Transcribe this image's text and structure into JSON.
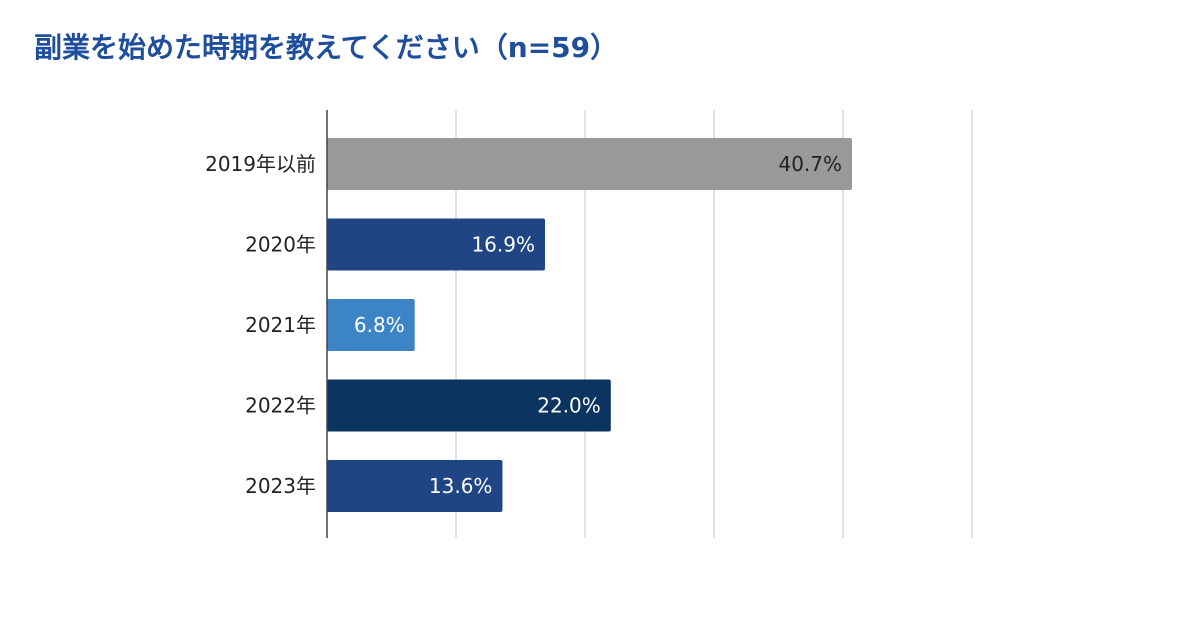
{
  "chart_data": {
    "type": "bar",
    "orientation": "horizontal",
    "title": "副業を始めた時期を教えてください（n=59）",
    "categories": [
      "2019年以前",
      "2020年",
      "2021年",
      "2022年",
      "2023年"
    ],
    "values": [
      40.7,
      16.9,
      6.8,
      22.0,
      13.6
    ],
    "value_labels": [
      "40.7%",
      "16.9%",
      "6.8%",
      "22.0%",
      "13.6%"
    ],
    "bar_colors": [
      "#999999",
      "#1f4584",
      "#3d84c6",
      "#0c3461",
      "#1f4584"
    ],
    "label_colors": [
      "#222222",
      "#ffffff",
      "#ffffff",
      "#ffffff",
      "#ffffff"
    ],
    "xlim": [
      0,
      50
    ],
    "grid": true,
    "xlabel": "",
    "ylabel": ""
  }
}
